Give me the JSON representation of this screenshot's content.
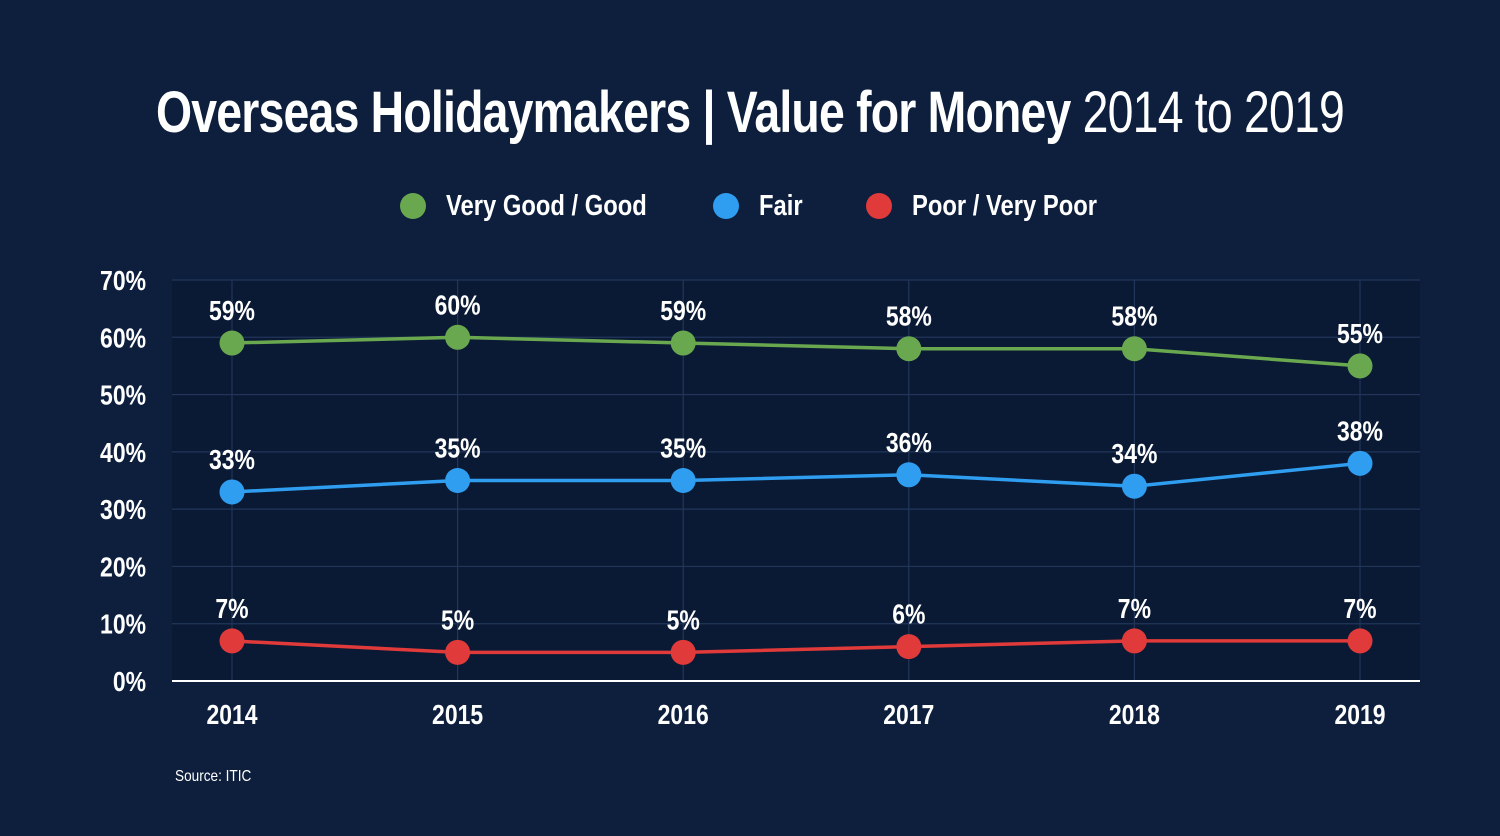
{
  "title": {
    "bold": "Overseas Holidaymakers | Value for Money",
    "light": "2014 to 2019"
  },
  "source": "Source: ITIC",
  "colors": {
    "background": "#0d1f3d",
    "plot_background": "#0b1a34",
    "grid": "#21365a",
    "very_good": "#6aa84f",
    "fair": "#2f9ef0",
    "poor": "#e03a3a"
  },
  "chart_data": {
    "type": "line",
    "title": "Overseas Holidaymakers | Value for Money 2014 to 2019",
    "xlabel": "",
    "ylabel": "",
    "x": [
      "2014",
      "2015",
      "2016",
      "2017",
      "2018",
      "2019"
    ],
    "ylim": [
      0,
      70
    ],
    "yticks": [
      "0%",
      "10%",
      "20%",
      "30%",
      "40%",
      "50%",
      "60%",
      "70%"
    ],
    "grid": true,
    "legend_position": "top-center",
    "series": [
      {
        "name": "Very Good / Good",
        "color": "#6aa84f",
        "values": [
          59,
          60,
          59,
          58,
          58,
          55
        ],
        "labels": [
          "59%",
          "60%",
          "59%",
          "58%",
          "58%",
          "55%"
        ]
      },
      {
        "name": "Fair",
        "color": "#2f9ef0",
        "values": [
          33,
          35,
          35,
          36,
          34,
          38
        ],
        "labels": [
          "33%",
          "35%",
          "35%",
          "36%",
          "34%",
          "38%"
        ]
      },
      {
        "name": "Poor / Very Poor",
        "color": "#e03a3a",
        "values": [
          7,
          5,
          5,
          6,
          7,
          7
        ],
        "labels": [
          "7%",
          "5%",
          "5%",
          "6%",
          "7%",
          "7%"
        ]
      }
    ]
  }
}
